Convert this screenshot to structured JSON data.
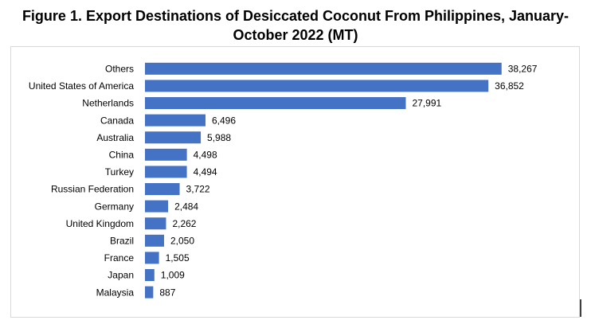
{
  "chart_data": {
    "type": "bar",
    "orientation": "horizontal",
    "title": "Figure 1. Export Destinations of Desiccated Coconut From Philippines, January-October 2022 (MT)",
    "categories": [
      "Others",
      "United States of America",
      "Netherlands",
      "Canada",
      "Australia",
      "China",
      "Turkey",
      "Russian Federation",
      "Germany",
      "United Kingdom",
      "Brazil",
      "France",
      "Japan",
      "Malaysia"
    ],
    "values": [
      38267,
      36852,
      27991,
      6496,
      5988,
      4498,
      4494,
      3722,
      2484,
      2262,
      2050,
      1505,
      1009,
      887
    ],
    "value_labels": [
      "38,267",
      "36,852",
      "27,991",
      "6,496",
      "5,988",
      "4,498",
      "4,494",
      "3,722",
      "2,484",
      "2,262",
      "2,050",
      "1,505",
      "1,009",
      "887"
    ],
    "color": "#4472c4",
    "xlim": [
      0,
      40000
    ]
  }
}
